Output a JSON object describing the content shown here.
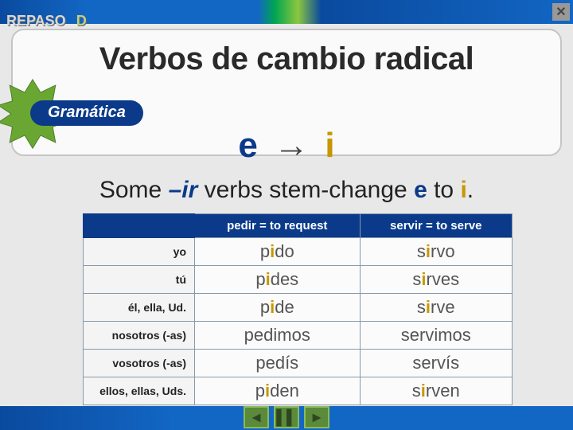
{
  "header": {
    "repaso": "REPASO",
    "letter": "D"
  },
  "title": "Verbos de cambio radical",
  "pill": "Gramática",
  "rule": {
    "from": "e",
    "arrow": "→",
    "to": "i"
  },
  "sentence": {
    "t1": "Some ",
    "ir": "–ir",
    "t2": " verbs stem-change ",
    "e": "e",
    "t3": " to ",
    "i": "i",
    "t4": "."
  },
  "table": {
    "headers": [
      "pedir = to request",
      "servir = to serve"
    ],
    "pronouns": [
      "yo",
      "tú",
      "él, ella, Ud.",
      "nosotros (-as)",
      "vosotros (-as)",
      "ellos, ellas, Uds."
    ],
    "pedir": [
      {
        "pre": "p",
        "hi": "i",
        "post": "do"
      },
      {
        "pre": "p",
        "hi": "i",
        "post": "des"
      },
      {
        "pre": "p",
        "hi": "i",
        "post": "de"
      },
      {
        "pre": "ped",
        "hi": "",
        "post": "imos"
      },
      {
        "pre": "ped",
        "hi": "",
        "post": "ís"
      },
      {
        "pre": "p",
        "hi": "i",
        "post": "den"
      }
    ],
    "servir": [
      {
        "pre": "s",
        "hi": "i",
        "post": "rvo"
      },
      {
        "pre": "s",
        "hi": "i",
        "post": "rves"
      },
      {
        "pre": "s",
        "hi": "i",
        "post": "rve"
      },
      {
        "pre": "serv",
        "hi": "",
        "post": "imos"
      },
      {
        "pre": "serv",
        "hi": "",
        "post": "ís"
      },
      {
        "pre": "s",
        "hi": "i",
        "post": "rven"
      }
    ]
  },
  "colors": {
    "blue": "#0b3a8a",
    "gold": "#c79700",
    "green_star": "#6aa732"
  }
}
